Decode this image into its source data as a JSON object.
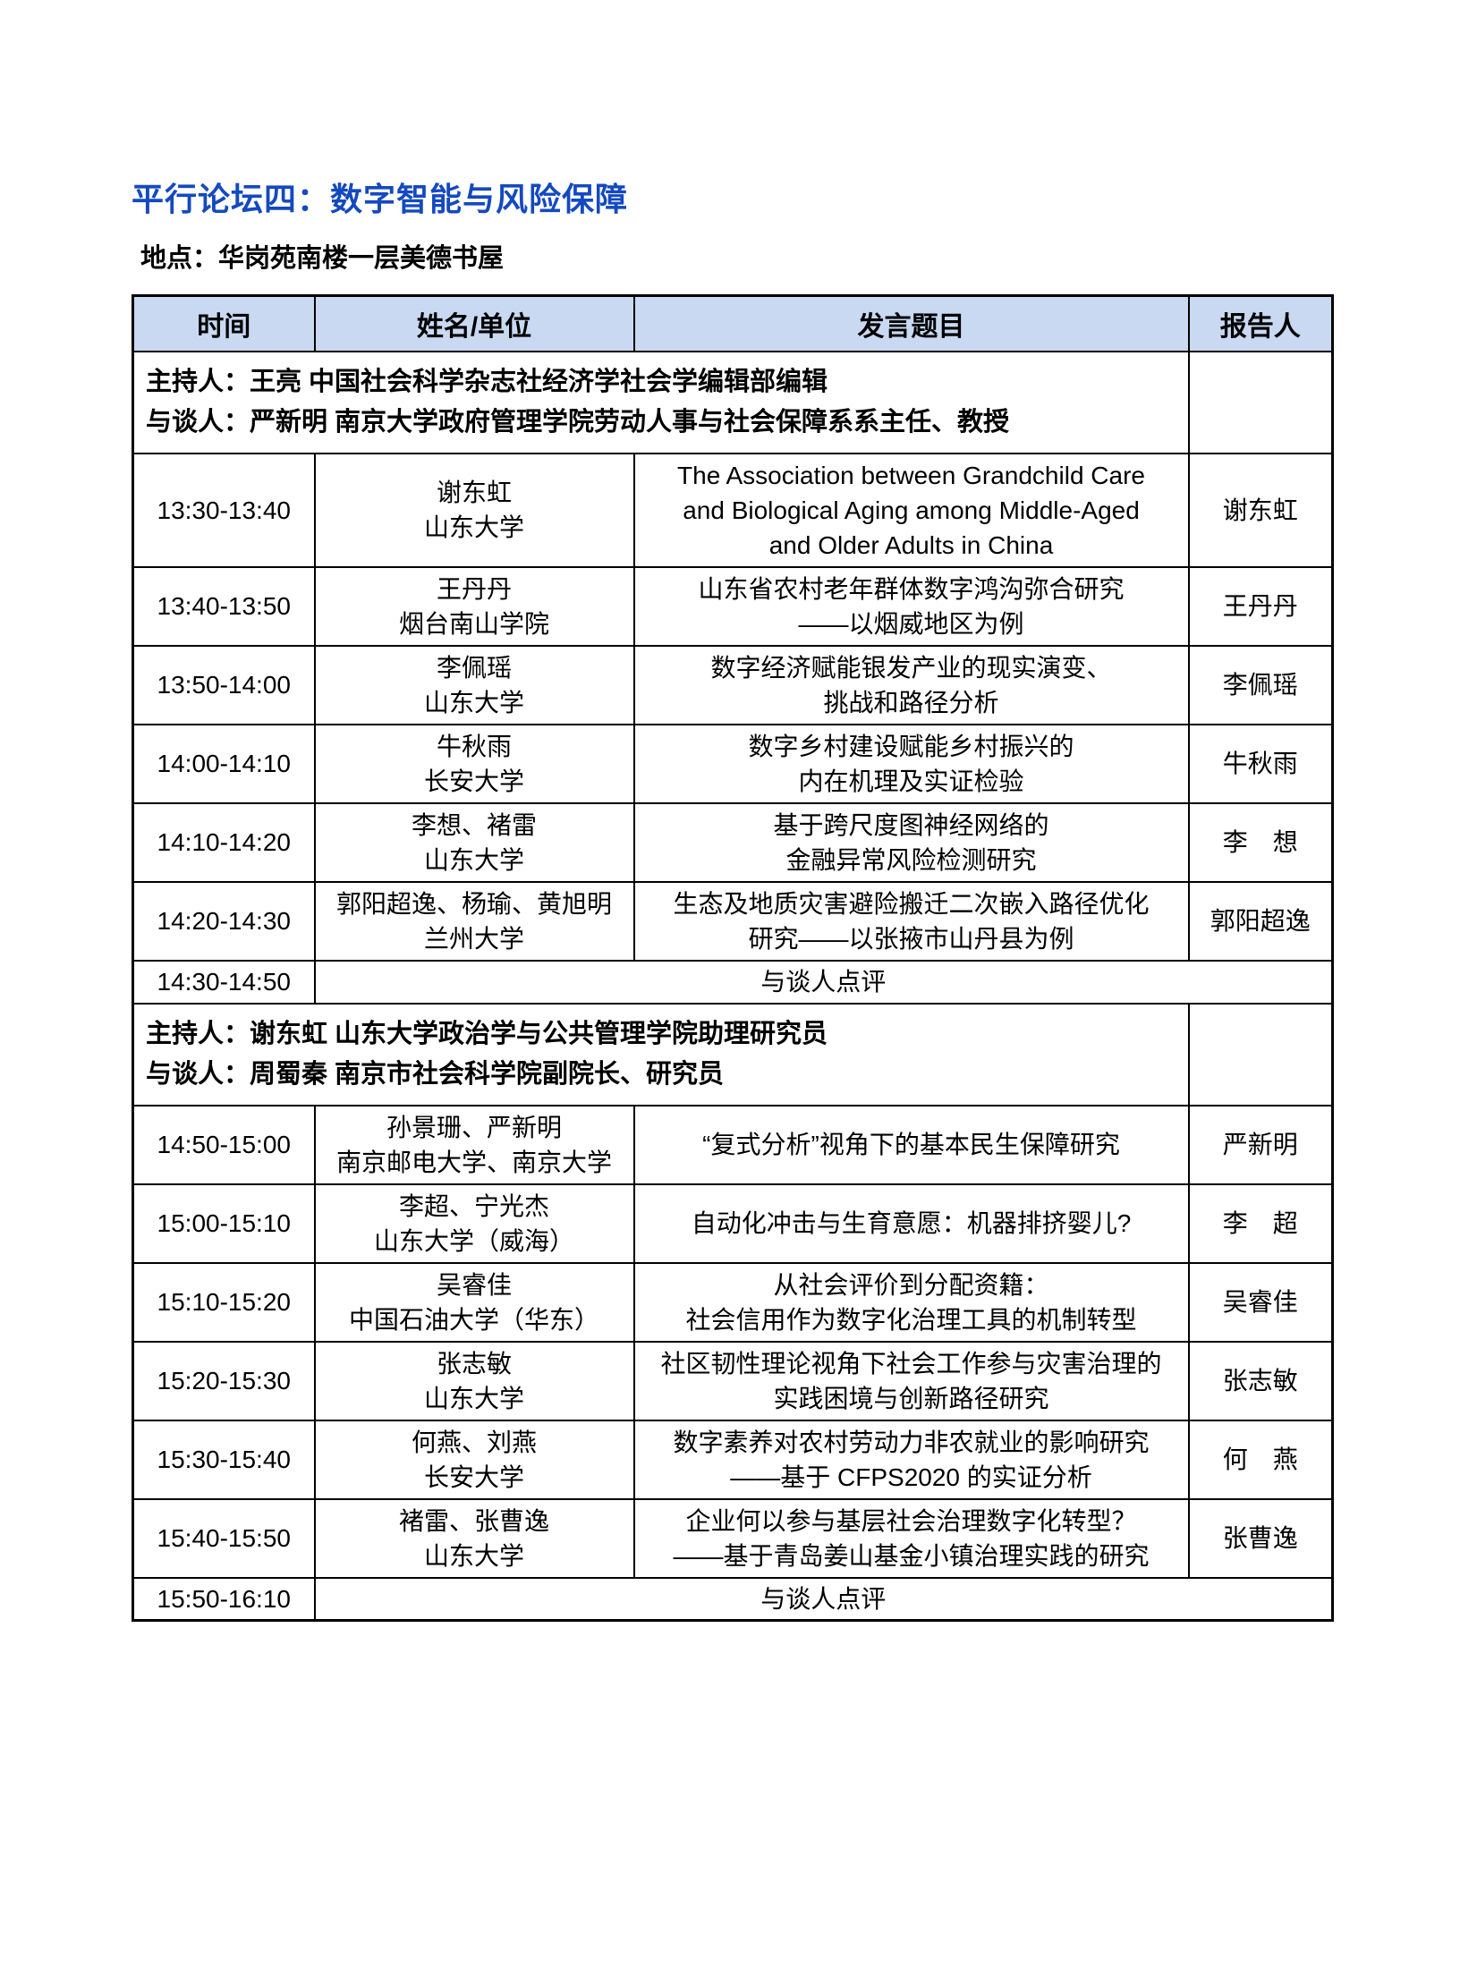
{
  "page": {
    "title": "平行论坛四：数字智能与风险保障",
    "location": "地点：华岗苑南楼一层美德书屋"
  },
  "colors": {
    "title_blue": "#1449C0",
    "header_bg": "#C8D9F1",
    "border_black": "#000000"
  },
  "table": {
    "columns": [
      "时间",
      "姓名/单位",
      "发言题目",
      "报告人"
    ],
    "rows": [
      {
        "type": "moderator",
        "lines": [
          "主持人：王亮 中国社会科学杂志社经济学社会学编辑部编辑",
          "与谈人：严新明 南京大学政府管理学院劳动人事与社会保障系系主任、教授"
        ]
      },
      {
        "type": "session",
        "time": "13:30-13:40",
        "speaker_lines": [
          "谢东虹",
          "山东大学"
        ],
        "topic_lines": [
          "The Association between Grandchild Care",
          "and Biological Aging among Middle-Aged",
          "and Older Adults in China"
        ],
        "presenter": "谢东虹"
      },
      {
        "type": "session",
        "time": "13:40-13:50",
        "speaker_lines": [
          "王丹丹",
          "烟台南山学院"
        ],
        "topic_lines": [
          "山东省农村老年群体数字鸿沟弥合研究",
          "——以烟威地区为例"
        ],
        "presenter": "王丹丹"
      },
      {
        "type": "session",
        "time": "13:50-14:00",
        "speaker_lines": [
          "李佩瑶",
          "山东大学"
        ],
        "topic_lines": [
          "数字经济赋能银发产业的现实演变、",
          "挑战和路径分析"
        ],
        "presenter": "李佩瑶"
      },
      {
        "type": "session",
        "time": "14:00-14:10",
        "speaker_lines": [
          "牛秋雨",
          "长安大学"
        ],
        "topic_lines": [
          "数字乡村建设赋能乡村振兴的",
          "内在机理及实证检验"
        ],
        "presenter": "牛秋雨"
      },
      {
        "type": "session",
        "time": "14:10-14:20",
        "speaker_lines": [
          "李想、褚雷",
          "山东大学"
        ],
        "topic_lines": [
          "基于跨尺度图神经网络的",
          "金融异常风险检测研究"
        ],
        "presenter": "李　想"
      },
      {
        "type": "session",
        "time": "14:20-14:30",
        "speaker_lines": [
          "郭阳超逸、杨瑜、黄旭明",
          "兰州大学"
        ],
        "topic_lines": [
          "生态及地质灾害避险搬迁二次嵌入路径优化",
          "研究——以张掖市山丹县为例"
        ],
        "presenter": "郭阳超逸"
      },
      {
        "type": "comment",
        "time": "14:30-14:50",
        "label": "与谈人点评"
      },
      {
        "type": "moderator",
        "lines": [
          "主持人：谢东虹 山东大学政治学与公共管理学院助理研究员",
          "与谈人：周蜀秦 南京市社会科学院副院长、研究员"
        ]
      },
      {
        "type": "session",
        "time": "14:50-15:00",
        "speaker_lines": [
          "孙景珊、严新明",
          "南京邮电大学、南京大学"
        ],
        "topic_lines": [
          "“复式分析”视角下的基本民生保障研究"
        ],
        "presenter": "严新明"
      },
      {
        "type": "session",
        "time": "15:00-15:10",
        "speaker_lines": [
          "李超、宁光杰",
          "山东大学（威海）"
        ],
        "topic_lines": [
          "自动化冲击与生育意愿：机器排挤婴儿?"
        ],
        "presenter": "李　超"
      },
      {
        "type": "session",
        "time": "15:10-15:20",
        "speaker_lines": [
          "吴睿佳",
          "中国石油大学（华东）"
        ],
        "topic_lines": [
          "从社会评价到分配资籍：",
          "社会信用作为数字化治理工具的机制转型"
        ],
        "presenter": "吴睿佳"
      },
      {
        "type": "session",
        "time": "15:20-15:30",
        "speaker_lines": [
          "张志敏",
          "山东大学"
        ],
        "topic_lines": [
          "社区韧性理论视角下社会工作参与灾害治理的",
          "实践困境与创新路径研究"
        ],
        "presenter": "张志敏"
      },
      {
        "type": "session",
        "time": "15:30-15:40",
        "speaker_lines": [
          "何燕、刘燕",
          "长安大学"
        ],
        "topic_lines": [
          "数字素养对农村劳动力非农就业的影响研究",
          "——基于 CFPS2020 的实证分析"
        ],
        "presenter": "何　燕"
      },
      {
        "type": "session",
        "time": "15:40-15:50",
        "speaker_lines": [
          "褚雷、张曹逸",
          "山东大学"
        ],
        "topic_lines": [
          "企业何以参与基层社会治理数字化转型？",
          "——基于青岛姜山基金小镇治理实践的研究"
        ],
        "presenter": "张曹逸"
      },
      {
        "type": "comment",
        "time": "15:50-16:10",
        "label": "与谈人点评"
      }
    ]
  }
}
